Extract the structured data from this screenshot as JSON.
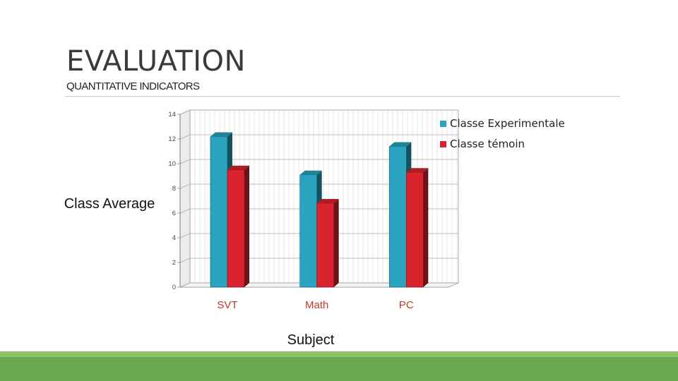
{
  "slide": {
    "title": "EVALUATION",
    "subtitle": "QUANTITATIVE INDICATORS"
  },
  "chart_data": {
    "type": "bar",
    "categories": [
      "SVT",
      "Math",
      "PC"
    ],
    "series": [
      {
        "name": "Classe Experimentale",
        "values": [
          12.2,
          9.1,
          11.4
        ],
        "color": "#2aa3c0"
      },
      {
        "name": "Classe témoin",
        "values": [
          9.5,
          6.8,
          9.3
        ],
        "color": "#d9232d"
      }
    ],
    "xlabel": "Subject",
    "ylabel": "Class Average",
    "ylim": [
      0,
      14
    ],
    "yticks": [
      0,
      2,
      4,
      6,
      8,
      10,
      12,
      14
    ],
    "legend": "top-right",
    "grid": true,
    "category_label_color": "#c0392b"
  }
}
